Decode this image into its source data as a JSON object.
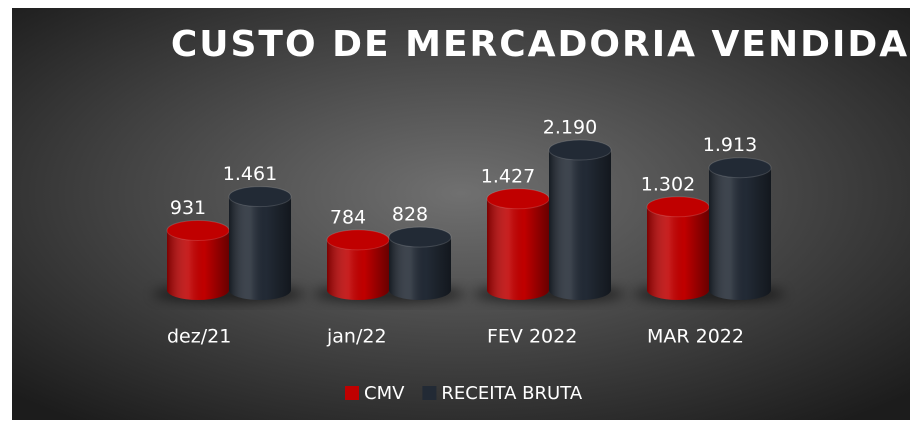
{
  "chart_data": {
    "type": "bar",
    "title": "CUSTO DE MERCADORIA VENDIDA",
    "categories": [
      "dez/21",
      "jan/22",
      "FEV 2022",
      "MAR 2022"
    ],
    "series": [
      {
        "name": "CMV",
        "color": "#c00000",
        "values": [
          931,
          784,
          1427,
          1302
        ],
        "value_labels": [
          "931",
          "784",
          "1.427",
          "1.302"
        ]
      },
      {
        "name": "RECEITA BRUTA",
        "color": "#222a35",
        "values": [
          1461,
          828,
          2190,
          1913
        ],
        "value_labels": [
          "1.461",
          "828",
          "2.190",
          "1.913"
        ]
      }
    ],
    "legend": "bottom"
  }
}
